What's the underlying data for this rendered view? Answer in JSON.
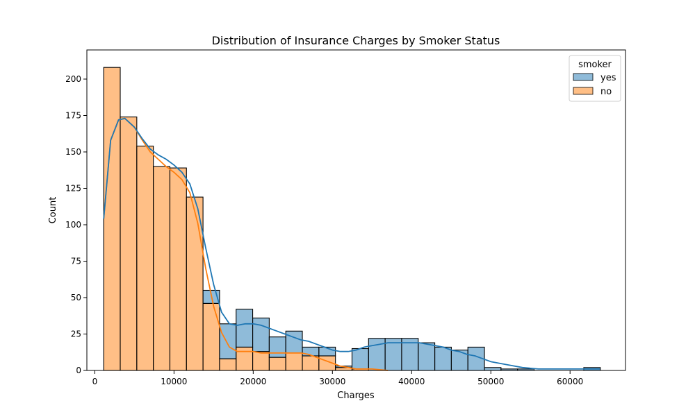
{
  "chart_data": {
    "type": "histogram",
    "title": "Distribution of Insurance Charges by Smoker Status",
    "xlabel": "Charges",
    "ylabel": "Count",
    "xlim": [
      -1000,
      67000
    ],
    "ylim": [
      0,
      220
    ],
    "xticks": [
      0,
      10000,
      20000,
      30000,
      40000,
      50000,
      60000
    ],
    "yticks": [
      0,
      25,
      50,
      75,
      100,
      125,
      150,
      175,
      200
    ],
    "multiple": "stack",
    "kde": true,
    "bins": {
      "start": 1122,
      "width": 2090,
      "count": 30
    },
    "legend": {
      "title": "smoker",
      "position": "top-right"
    },
    "colors": {
      "yes": "#1f77b4",
      "no": "#ff7f0e"
    },
    "series": [
      {
        "name": "no",
        "values": [
          208,
          174,
          154,
          140,
          139,
          119,
          46,
          8,
          16,
          13,
          9,
          12,
          10,
          10,
          2,
          1,
          0,
          0,
          0,
          0,
          0,
          0,
          0,
          0,
          0,
          0,
          0,
          0,
          0,
          0
        ]
      },
      {
        "name": "yes",
        "values": [
          0,
          0,
          0,
          0,
          0,
          0,
          9,
          24,
          26,
          23,
          14,
          15,
          6,
          6,
          1,
          14,
          22,
          22,
          22,
          19,
          16,
          14,
          16,
          2,
          1,
          1,
          0,
          0,
          0,
          2
        ]
      }
    ],
    "kde_lines": [
      {
        "name": "no",
        "points": [
          [
            1122,
            104
          ],
          [
            2000,
            158
          ],
          [
            3000,
            172
          ],
          [
            3800,
            173
          ],
          [
            5000,
            167
          ],
          [
            6000,
            158
          ],
          [
            7000,
            150
          ],
          [
            8000,
            145
          ],
          [
            9000,
            140
          ],
          [
            10000,
            136
          ],
          [
            11000,
            131
          ],
          [
            12000,
            122
          ],
          [
            13000,
            101
          ],
          [
            14000,
            70
          ],
          [
            15000,
            44
          ],
          [
            16000,
            26
          ],
          [
            17000,
            16
          ],
          [
            18000,
            13
          ],
          [
            19000,
            13
          ],
          [
            20000,
            13
          ],
          [
            21000,
            12
          ],
          [
            22000,
            12
          ],
          [
            23000,
            12
          ],
          [
            24000,
            12
          ],
          [
            25000,
            12
          ],
          [
            26000,
            12
          ],
          [
            27000,
            11
          ],
          [
            28000,
            9
          ],
          [
            29000,
            7
          ],
          [
            30000,
            5
          ],
          [
            31000,
            3
          ],
          [
            32000,
            2
          ],
          [
            33000,
            1
          ],
          [
            35000,
            1
          ],
          [
            37000,
            0
          ]
        ]
      },
      {
        "name": "yes",
        "points": [
          [
            1122,
            104
          ],
          [
            2000,
            158
          ],
          [
            3000,
            172
          ],
          [
            3800,
            173
          ],
          [
            5000,
            167
          ],
          [
            6000,
            159
          ],
          [
            7000,
            152
          ],
          [
            8000,
            148
          ],
          [
            9000,
            145
          ],
          [
            10000,
            141
          ],
          [
            11000,
            136
          ],
          [
            12000,
            128
          ],
          [
            13000,
            111
          ],
          [
            14000,
            84
          ],
          [
            15000,
            59
          ],
          [
            16000,
            40
          ],
          [
            17000,
            32
          ],
          [
            18000,
            31
          ],
          [
            19000,
            32
          ],
          [
            20000,
            32
          ],
          [
            21000,
            31
          ],
          [
            22000,
            29
          ],
          [
            23000,
            27
          ],
          [
            24000,
            25
          ],
          [
            25000,
            23
          ],
          [
            26000,
            21
          ],
          [
            27000,
            20
          ],
          [
            28000,
            18
          ],
          [
            29000,
            16
          ],
          [
            30000,
            14
          ],
          [
            31000,
            13
          ],
          [
            32000,
            13
          ],
          [
            33000,
            14
          ],
          [
            34000,
            16
          ],
          [
            35000,
            17
          ],
          [
            36000,
            18
          ],
          [
            37000,
            19
          ],
          [
            38000,
            19
          ],
          [
            39000,
            19
          ],
          [
            40000,
            19
          ],
          [
            41000,
            19
          ],
          [
            42000,
            18
          ],
          [
            43000,
            17
          ],
          [
            44000,
            16
          ],
          [
            45000,
            14
          ],
          [
            46000,
            13
          ],
          [
            47000,
            11
          ],
          [
            48000,
            10
          ],
          [
            49000,
            8
          ],
          [
            50000,
            6
          ],
          [
            52000,
            4
          ],
          [
            54000,
            2
          ],
          [
            56000,
            1
          ],
          [
            60000,
            1
          ],
          [
            63770,
            1
          ]
        ]
      }
    ]
  }
}
